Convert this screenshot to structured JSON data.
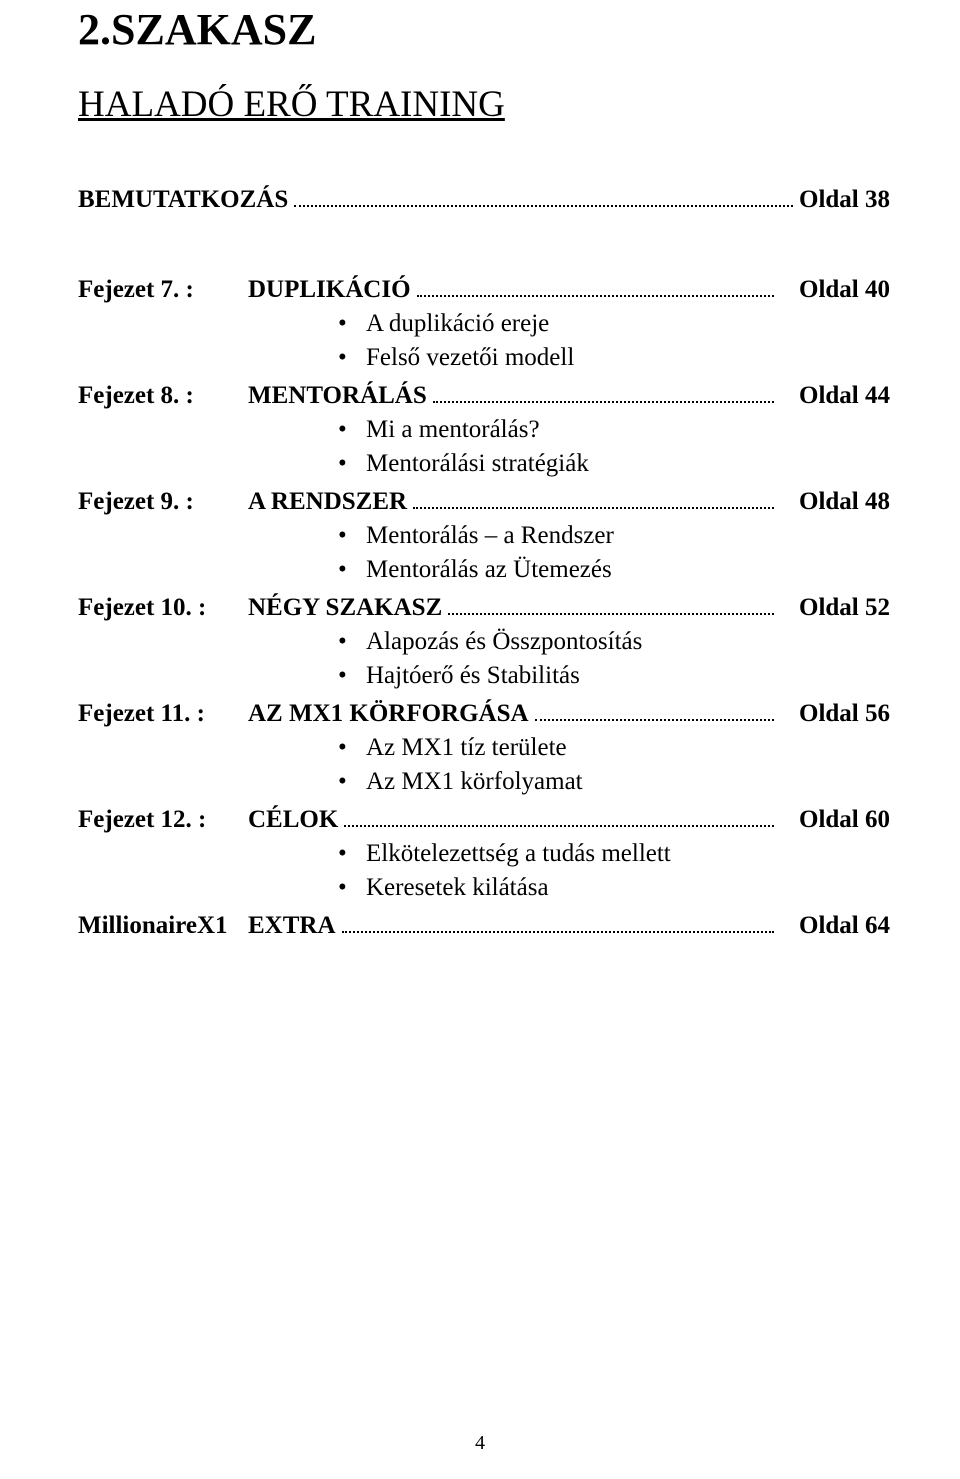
{
  "section_title": "2.SZAKASZ",
  "subtitle": "HALADÓ ERŐ TRAINING",
  "intro": {
    "label": "BEMUTATKOZÁS",
    "page": "Oldal 38"
  },
  "chapters": [
    {
      "left": "Fejezet 7. :",
      "title": "DUPLIKÁCIÓ",
      "page": "Oldal 40",
      "bullets": [
        "A duplikáció ereje",
        "Felső vezetői modell"
      ]
    },
    {
      "left": "Fejezet 8. :",
      "title": "MENTORÁLÁS",
      "page": "Oldal 44",
      "bullets": [
        "Mi a mentorálás?",
        "Mentorálási stratégiák"
      ]
    },
    {
      "left": "Fejezet 9. :",
      "title": "A RENDSZER",
      "page": "Oldal 48",
      "bullets": [
        "Mentorálás – a Rendszer",
        "Mentorálás az Ütemezés"
      ]
    },
    {
      "left": "Fejezet 10. :",
      "title": "NÉGY SZAKASZ",
      "page": "Oldal 52",
      "bullets": [
        "Alapozás és Összpontosítás",
        "Hajtóerő és Stabilitás"
      ]
    },
    {
      "left": "Fejezet 11. :",
      "title": "AZ MX1 KÖRFORGÁSA",
      "page": "Oldal 56",
      "bullets": [
        "Az MX1 tíz területe",
        "Az MX1 körfolyamat"
      ]
    },
    {
      "left": "Fejezet 12. :",
      "title": "CÉLOK",
      "page": "Oldal 60",
      "bullets": [
        "Elkötelezettség a tudás mellett",
        "Keresetek kilátása"
      ]
    },
    {
      "left": "MillionaireX1",
      "title": "EXTRA",
      "page": "Oldal 64",
      "bullets": []
    }
  ],
  "page_number": "4",
  "colors": {
    "text": "#000000",
    "background": "#ffffff"
  },
  "typography": {
    "font_family": "Garamond, Times New Roman, serif",
    "section_title_size_pt": 33,
    "subtitle_size_pt": 28,
    "body_size_pt": 19,
    "page_number_size_pt": 15
  }
}
